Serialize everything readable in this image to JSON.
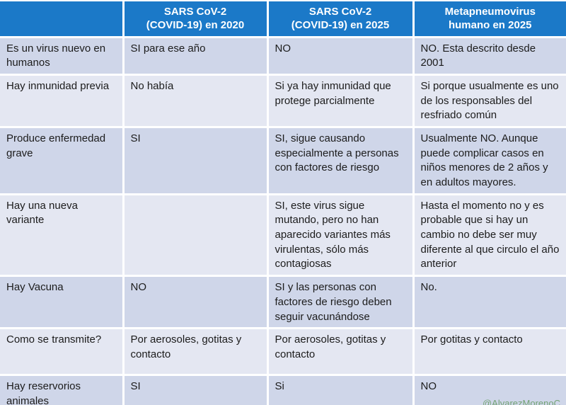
{
  "table": {
    "columns": [
      "",
      "SARS CoV-2\n(COVID-19) en 2020",
      "SARS CoV-2\n(COVID-19) en 2025",
      "Metapneumovirus\nhumano  en 2025"
    ],
    "rows": [
      {
        "label": "Es un virus nuevo  en humanos",
        "cells": [
          "SI para ese año",
          "NO",
          "NO. Esta descrito desde 2001"
        ]
      },
      {
        "label": "Hay inmunidad previa",
        "cells": [
          "No había",
          "Si ya hay inmunidad que protege parcialmente",
          "Si porque usualmente es uno de los responsables del resfriado común"
        ]
      },
      {
        "label": "Produce enfermedad grave",
        "cells": [
          "SI",
          "SI, sigue causando especialmente a personas con factores de riesgo",
          "Usualmente NO. Aunque puede complicar casos  en niños menores de 2 años y en adultos mayores."
        ]
      },
      {
        "label": "Hay una nueva variante",
        "cells": [
          "",
          "SI, este virus sigue mutando, pero no han aparecido variantes más virulentas, sólo más contagiosas",
          "Hasta el momento no y es probable que si hay un cambio no debe ser muy diferente al que circulo el año anterior"
        ]
      },
      {
        "label": "Hay Vacuna",
        "cells": [
          "NO",
          "SI y las personas con factores de riesgo deben seguir vacunándose",
          "No."
        ]
      },
      {
        "label": "Como se transmite?",
        "cells": [
          "Por aerosoles, gotitas y contacto",
          "Por aerosoles, gotitas y contacto",
          "Por gotitas y contacto"
        ]
      },
      {
        "label": "Hay reservorios animales",
        "cells": [
          "SI",
          "Si",
          "NO"
        ]
      }
    ],
    "credit": "@AlvarezMorenoC",
    "colors": {
      "header_bg": "#1b79c8",
      "header_text": "#ffffff",
      "row_dark": "#cfd6e9",
      "row_light": "#e4e7f2",
      "body_text": "#1c1c1c",
      "credit_text": "#74a376",
      "grid": "#ffffff"
    }
  }
}
